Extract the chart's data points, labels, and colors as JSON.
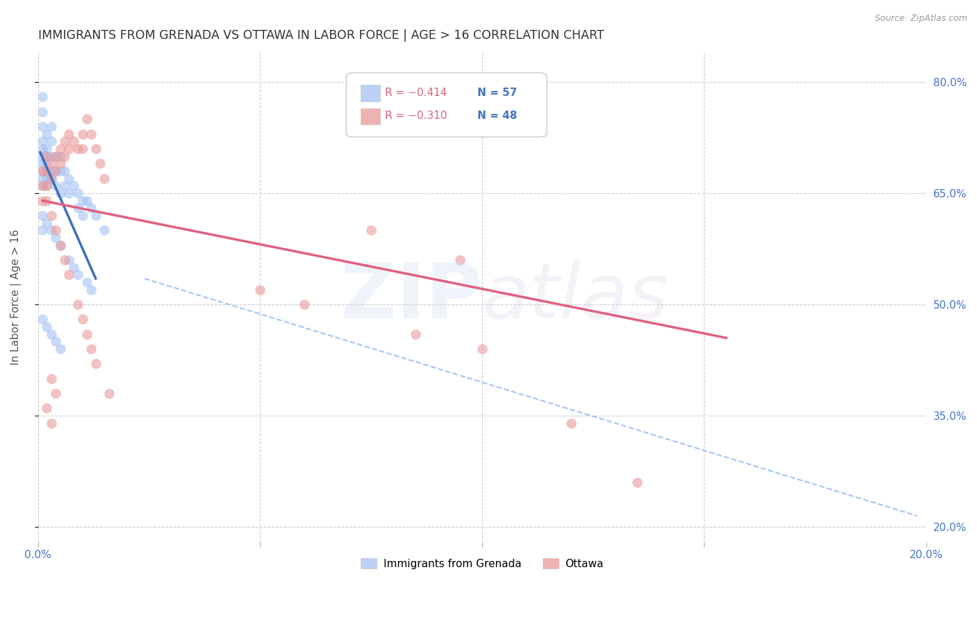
{
  "title": "IMMIGRANTS FROM GRENADA VS OTTAWA IN LABOR FORCE | AGE > 16 CORRELATION CHART",
  "source": "Source: ZipAtlas.com",
  "ylabel": "In Labor Force | Age > 16",
  "xlim": [
    0.0,
    0.2
  ],
  "ylim": [
    0.18,
    0.84
  ],
  "xticks": [
    0.0,
    0.05,
    0.1,
    0.15,
    0.2
  ],
  "xtick_labels": [
    "0.0%",
    "",
    "",
    "",
    "20.0%"
  ],
  "yticks_right": [
    0.8,
    0.65,
    0.5,
    0.35,
    0.2
  ],
  "ytick_labels_right": [
    "80.0%",
    "65.0%",
    "50.0%",
    "35.0%",
    "20.0%"
  ],
  "blue_color": "#a4c2f4",
  "pink_color": "#ea9999",
  "trend_blue": "#3c6ebe",
  "trend_pink": "#e06080",
  "dashed_color": "#a4c2f4",
  "blue_scatter_x": [
    0.001,
    0.001,
    0.001,
    0.001,
    0.001,
    0.001,
    0.001,
    0.001,
    0.001,
    0.001,
    0.002,
    0.002,
    0.002,
    0.002,
    0.002,
    0.002,
    0.002,
    0.003,
    0.003,
    0.003,
    0.003,
    0.003,
    0.004,
    0.004,
    0.004,
    0.005,
    0.005,
    0.005,
    0.006,
    0.006,
    0.007,
    0.007,
    0.008,
    0.009,
    0.009,
    0.01,
    0.01,
    0.011,
    0.012,
    0.013,
    0.015,
    0.001,
    0.001,
    0.002,
    0.003,
    0.004,
    0.005,
    0.007,
    0.008,
    0.009,
    0.011,
    0.012,
    0.001,
    0.002,
    0.003,
    0.004,
    0.005
  ],
  "blue_scatter_y": [
    0.78,
    0.76,
    0.74,
    0.72,
    0.71,
    0.7,
    0.69,
    0.68,
    0.67,
    0.66,
    0.73,
    0.71,
    0.7,
    0.69,
    0.68,
    0.67,
    0.66,
    0.74,
    0.72,
    0.7,
    0.68,
    0.67,
    0.7,
    0.68,
    0.66,
    0.7,
    0.68,
    0.65,
    0.68,
    0.66,
    0.67,
    0.65,
    0.66,
    0.65,
    0.63,
    0.64,
    0.62,
    0.64,
    0.63,
    0.62,
    0.6,
    0.62,
    0.6,
    0.61,
    0.6,
    0.59,
    0.58,
    0.56,
    0.55,
    0.54,
    0.53,
    0.52,
    0.48,
    0.47,
    0.46,
    0.45,
    0.44
  ],
  "pink_scatter_x": [
    0.001,
    0.001,
    0.001,
    0.002,
    0.002,
    0.002,
    0.003,
    0.003,
    0.004,
    0.004,
    0.005,
    0.005,
    0.006,
    0.006,
    0.007,
    0.007,
    0.008,
    0.009,
    0.01,
    0.01,
    0.011,
    0.012,
    0.013,
    0.014,
    0.015,
    0.002,
    0.003,
    0.004,
    0.005,
    0.006,
    0.007,
    0.009,
    0.01,
    0.011,
    0.012,
    0.013,
    0.016,
    0.003,
    0.004,
    0.002,
    0.003,
    0.085,
    0.1,
    0.05,
    0.06,
    0.12,
    0.135,
    0.095,
    0.075
  ],
  "pink_scatter_y": [
    0.68,
    0.66,
    0.64,
    0.7,
    0.68,
    0.66,
    0.69,
    0.67,
    0.7,
    0.68,
    0.71,
    0.69,
    0.72,
    0.7,
    0.73,
    0.71,
    0.72,
    0.71,
    0.73,
    0.71,
    0.75,
    0.73,
    0.71,
    0.69,
    0.67,
    0.64,
    0.62,
    0.6,
    0.58,
    0.56,
    0.54,
    0.5,
    0.48,
    0.46,
    0.44,
    0.42,
    0.38,
    0.4,
    0.38,
    0.36,
    0.34,
    0.46,
    0.44,
    0.52,
    0.5,
    0.34,
    0.26,
    0.56,
    0.6
  ],
  "blue_trend_x": [
    0.0005,
    0.013
  ],
  "blue_trend_y": [
    0.705,
    0.535
  ],
  "pink_trend_x": [
    0.001,
    0.155
  ],
  "pink_trend_y": [
    0.64,
    0.455
  ],
  "dashed_trend_x": [
    0.024,
    0.198
  ],
  "dashed_trend_y": [
    0.535,
    0.215
  ],
  "background_color": "#ffffff",
  "grid_color": "#cccccc",
  "title_color": "#333333",
  "axis_label_color": "#555555",
  "right_tick_color": "#4472c4"
}
